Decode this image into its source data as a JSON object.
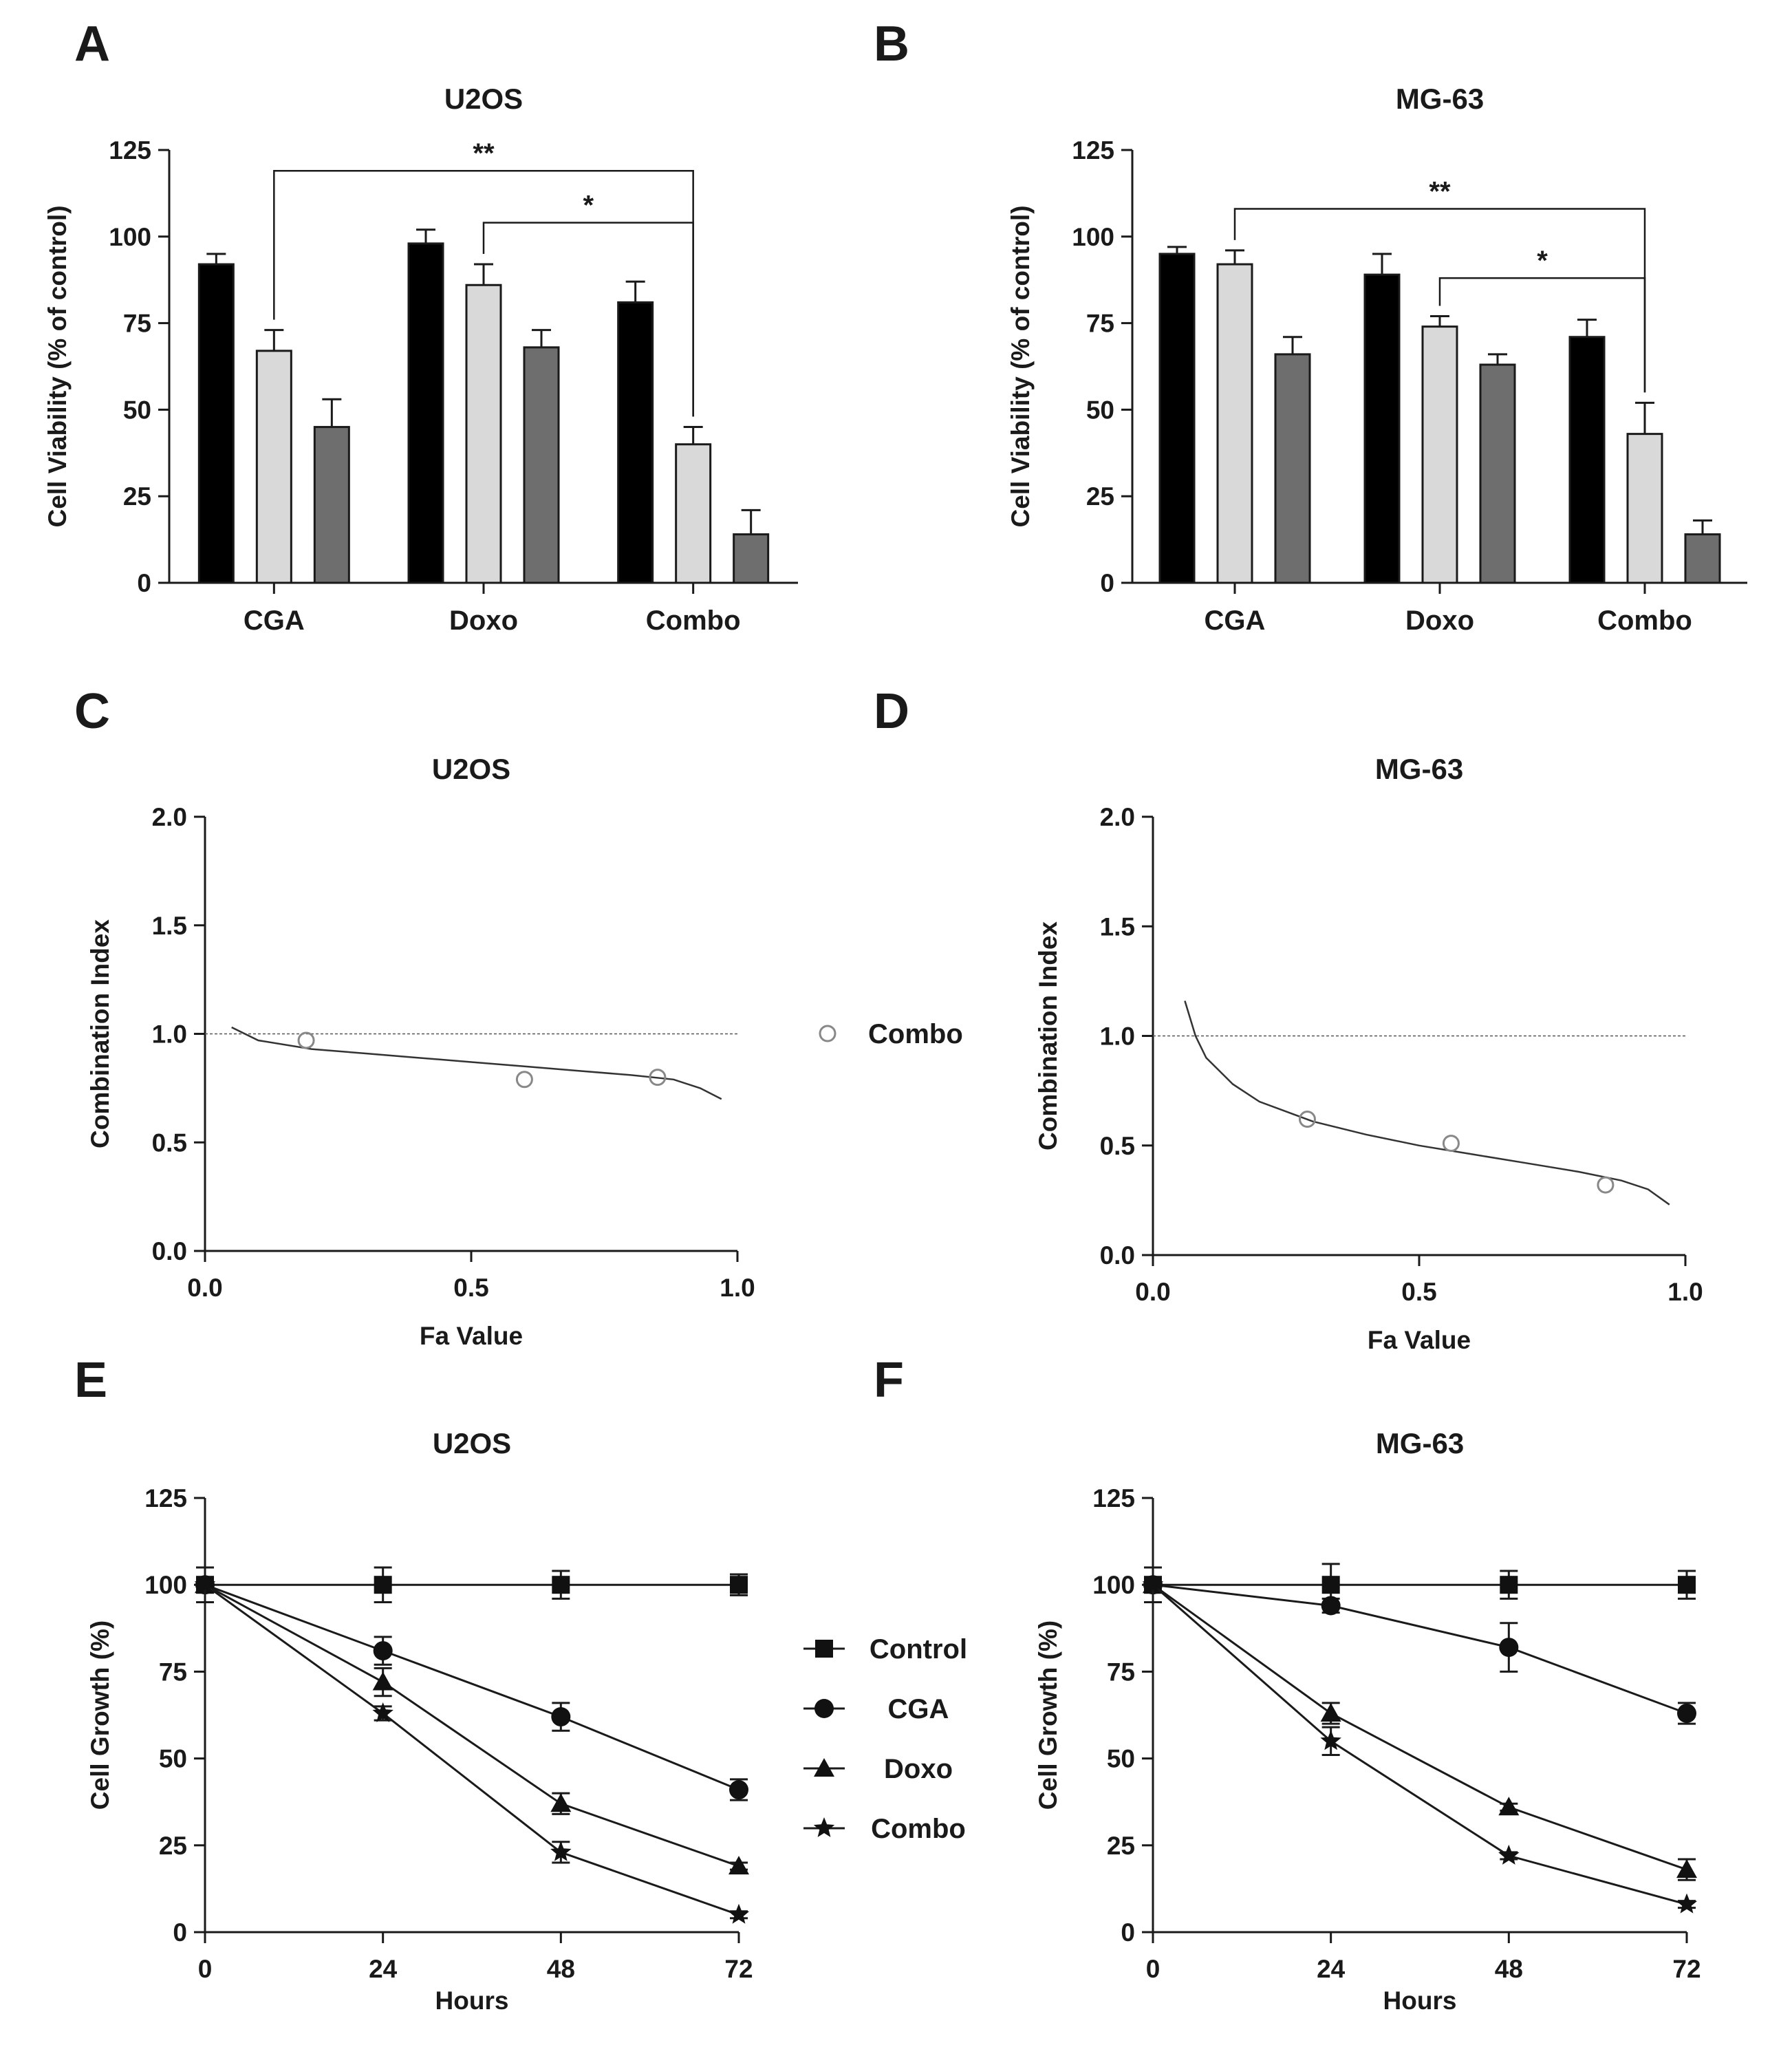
{
  "chart_data": [
    {
      "panel": "A",
      "type": "bar",
      "title": "U2OS",
      "xlabel": "",
      "ylabel": "Cell Viability (% of control)",
      "categories": [
        "CGA",
        "Doxo",
        "Combo"
      ],
      "series": [
        {
          "values": [
            92,
            98,
            81
          ],
          "errors": [
            3,
            4,
            6
          ],
          "color": "#000000"
        },
        {
          "values": [
            67,
            86,
            40
          ],
          "errors": [
            6,
            6,
            5
          ],
          "color": "#d9d9d9"
        },
        {
          "values": [
            45,
            68,
            14
          ],
          "errors": [
            8,
            5,
            7
          ],
          "color": "#6e6e6e"
        }
      ],
      "ylim": [
        0,
        125
      ],
      "yticks": [
        "0",
        "25",
        "50",
        "75",
        "100",
        "125"
      ],
      "significance": [
        {
          "from": [
            0,
            1
          ],
          "to": [
            2,
            1
          ],
          "label": "**",
          "y": 119
        },
        {
          "from": [
            1,
            1
          ],
          "to": [
            2,
            1
          ],
          "label": "*",
          "y": 104
        }
      ]
    },
    {
      "panel": "B",
      "type": "bar",
      "title": "MG-63",
      "xlabel": "",
      "ylabel": "Cell Viability (% of control)",
      "categories": [
        "CGA",
        "Doxo",
        "Combo"
      ],
      "series": [
        {
          "values": [
            95,
            89,
            71
          ],
          "errors": [
            2,
            6,
            5
          ],
          "color": "#000000"
        },
        {
          "values": [
            92,
            74,
            43
          ],
          "errors": [
            4,
            3,
            9
          ],
          "color": "#d9d9d9"
        },
        {
          "values": [
            66,
            63,
            14
          ],
          "errors": [
            5,
            3,
            4
          ],
          "color": "#6e6e6e"
        }
      ],
      "ylim": [
        0,
        125
      ],
      "yticks": [
        "0",
        "25",
        "50",
        "75",
        "100",
        "125"
      ],
      "significance": [
        {
          "from": [
            0,
            1
          ],
          "to": [
            2,
            1
          ],
          "label": "**",
          "y": 108
        },
        {
          "from": [
            1,
            1
          ],
          "to": [
            2,
            1
          ],
          "label": "*",
          "y": 88
        }
      ]
    },
    {
      "panel": "C",
      "type": "scatter",
      "title": "U2OS",
      "xlabel": "Fa Value",
      "ylabel": "Combination Index",
      "xlim": [
        0,
        1
      ],
      "ylim": [
        0,
        2
      ],
      "xticks": [
        "0.0",
        "0.5",
        "1.0"
      ],
      "yticks": [
        "0.0",
        "0.5",
        "1.0",
        "1.5",
        "2.0"
      ],
      "reference_line": 1.0,
      "points": [
        {
          "x": 0.19,
          "y": 0.97
        },
        {
          "x": 0.6,
          "y": 0.79
        },
        {
          "x": 0.85,
          "y": 0.8
        }
      ],
      "fit_curve": [
        [
          0.05,
          1.03
        ],
        [
          0.1,
          0.97
        ],
        [
          0.2,
          0.93
        ],
        [
          0.3,
          0.91
        ],
        [
          0.4,
          0.89
        ],
        [
          0.5,
          0.87
        ],
        [
          0.6,
          0.85
        ],
        [
          0.7,
          0.83
        ],
        [
          0.8,
          0.81
        ],
        [
          0.88,
          0.79
        ],
        [
          0.93,
          0.75
        ],
        [
          0.97,
          0.7
        ]
      ],
      "legend": [
        {
          "label": "Combo",
          "marker": "open-circle"
        }
      ]
    },
    {
      "panel": "D",
      "type": "scatter",
      "title": "MG-63",
      "xlabel": "Fa Value",
      "ylabel": "Combination Index",
      "xlim": [
        0,
        1
      ],
      "ylim": [
        0,
        2
      ],
      "xticks": [
        "0.0",
        "0.5",
        "1.0"
      ],
      "yticks": [
        "0.0",
        "0.5",
        "1.0",
        "1.5",
        "2.0"
      ],
      "reference_line": 1.0,
      "points": [
        {
          "x": 0.29,
          "y": 0.62
        },
        {
          "x": 0.56,
          "y": 0.51
        },
        {
          "x": 0.85,
          "y": 0.32
        }
      ],
      "fit_curve": [
        [
          0.06,
          1.16
        ],
        [
          0.08,
          1.0
        ],
        [
          0.1,
          0.9
        ],
        [
          0.15,
          0.78
        ],
        [
          0.2,
          0.7
        ],
        [
          0.3,
          0.61
        ],
        [
          0.4,
          0.55
        ],
        [
          0.5,
          0.5
        ],
        [
          0.6,
          0.46
        ],
        [
          0.7,
          0.42
        ],
        [
          0.8,
          0.38
        ],
        [
          0.88,
          0.34
        ],
        [
          0.93,
          0.3
        ],
        [
          0.97,
          0.23
        ]
      ]
    },
    {
      "panel": "E",
      "type": "line",
      "title": "U2OS",
      "xlabel": "Hours",
      "ylabel": "Cell Growth (%)",
      "x": [
        0,
        24,
        48,
        72
      ],
      "xticks": [
        "0",
        "24",
        "48",
        "72"
      ],
      "yticks": [
        "0",
        "25",
        "50",
        "75",
        "100",
        "125"
      ],
      "xlim": [
        0,
        72
      ],
      "ylim": [
        0,
        125
      ],
      "series": [
        {
          "name": "Control",
          "marker": "square",
          "values": [
            100,
            100,
            100,
            100
          ],
          "errors": [
            5,
            5,
            4,
            3
          ]
        },
        {
          "name": "CGA",
          "marker": "circle",
          "values": [
            100,
            81,
            62,
            41
          ],
          "errors": [
            5,
            4,
            4,
            3
          ]
        },
        {
          "name": "Doxo",
          "marker": "triangle",
          "values": [
            100,
            72,
            37,
            19
          ],
          "errors": [
            5,
            4,
            3,
            1
          ]
        },
        {
          "name": "Combo",
          "marker": "star",
          "values": [
            100,
            63,
            23,
            5
          ],
          "errors": [
            5,
            2,
            3,
            1
          ]
        }
      ]
    },
    {
      "panel": "F",
      "type": "line",
      "title": "MG-63",
      "xlabel": "Hours",
      "ylabel": "Cell Growth (%)",
      "x": [
        0,
        24,
        48,
        72
      ],
      "xticks": [
        "0",
        "24",
        "48",
        "72"
      ],
      "yticks": [
        "0",
        "25",
        "50",
        "75",
        "100",
        "125"
      ],
      "xlim": [
        0,
        72
      ],
      "ylim": [
        0,
        125
      ],
      "series": [
        {
          "name": "Control",
          "marker": "square",
          "values": [
            100,
            100,
            100,
            100
          ],
          "errors": [
            5,
            6,
            4,
            4
          ]
        },
        {
          "name": "CGA",
          "marker": "circle",
          "values": [
            100,
            94,
            82,
            63
          ],
          "errors": [
            5,
            2,
            7,
            3
          ]
        },
        {
          "name": "Doxo",
          "marker": "triangle",
          "values": [
            100,
            63,
            36,
            18
          ],
          "errors": [
            5,
            3,
            1,
            3
          ]
        },
        {
          "name": "Combo",
          "marker": "star",
          "values": [
            100,
            55,
            22,
            8
          ],
          "errors": [
            5,
            4,
            1,
            1
          ]
        }
      ]
    }
  ]
}
